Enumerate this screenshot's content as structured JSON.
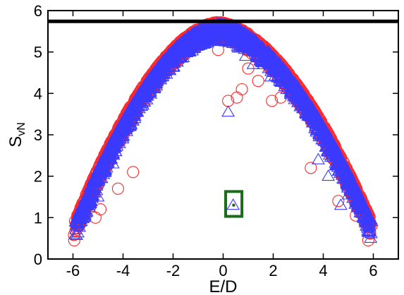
{
  "chart_data": {
    "type": "scatter",
    "xlabel": "E/D",
    "ylabel": "S",
    "ylabel_subscript": "vN",
    "xlim": [
      -7,
      7
    ],
    "ylim": [
      0,
      6
    ],
    "xticks": [
      "-6",
      "-4",
      "-2",
      "0",
      "2",
      "4",
      "6"
    ],
    "yticks": [
      "0",
      "1",
      "2",
      "3",
      "4",
      "5",
      "6"
    ],
    "grid": false,
    "reference_line": {
      "y": 5.74,
      "color": "#000000"
    },
    "highlight_box": {
      "x": [
        0.1,
        0.75
      ],
      "y": [
        1.03,
        1.63
      ],
      "color": "#1a6b1a"
    },
    "highlight_point": {
      "x": 0.42,
      "y": 1.3,
      "color": "#1a6b1a"
    },
    "envelope": {
      "peak_x": -0.2,
      "peak_y": 5.72,
      "x_min": -5.9,
      "x_max": 5.9,
      "edge_y": 0.95
    },
    "series": [
      {
        "marker": "circle",
        "color": "#ff2a2a",
        "outliers": [
          [
            -5.95,
            0.45
          ],
          [
            5.8,
            0.45
          ],
          [
            -5.1,
            1.0
          ],
          [
            5.3,
            1.05
          ],
          [
            -4.9,
            1.2
          ],
          [
            -0.2,
            5.05
          ],
          [
            0.2,
            3.82
          ],
          [
            0.55,
            3.9
          ],
          [
            0.75,
            4.1
          ],
          [
            1.0,
            4.6
          ],
          [
            1.4,
            4.3
          ],
          [
            1.95,
            3.82
          ],
          [
            2.3,
            3.9
          ],
          [
            3.5,
            2.2
          ],
          [
            4.6,
            1.4
          ],
          [
            -3.6,
            2.1
          ],
          [
            -4.2,
            1.7
          ],
          [
            1.7,
            4.9
          ],
          [
            -1.6,
            5.0
          ]
        ]
      },
      {
        "marker": "triangle",
        "color": "#3a3aff",
        "outliers": [
          [
            0.4,
            1.3
          ],
          [
            0.2,
            3.55
          ],
          [
            5.6,
            1.0
          ],
          [
            -5.6,
            1.0
          ],
          [
            0.6,
            5.1
          ],
          [
            0.9,
            4.9
          ],
          [
            1.2,
            4.7
          ],
          [
            4.7,
            1.3
          ],
          [
            5.0,
            1.55
          ],
          [
            5.3,
            1.7
          ],
          [
            3.8,
            2.4
          ],
          [
            4.2,
            2.0
          ],
          [
            -4.4,
            2.3
          ],
          [
            -5.0,
            1.5
          ],
          [
            1.9,
            4.4
          ]
        ]
      }
    ]
  }
}
